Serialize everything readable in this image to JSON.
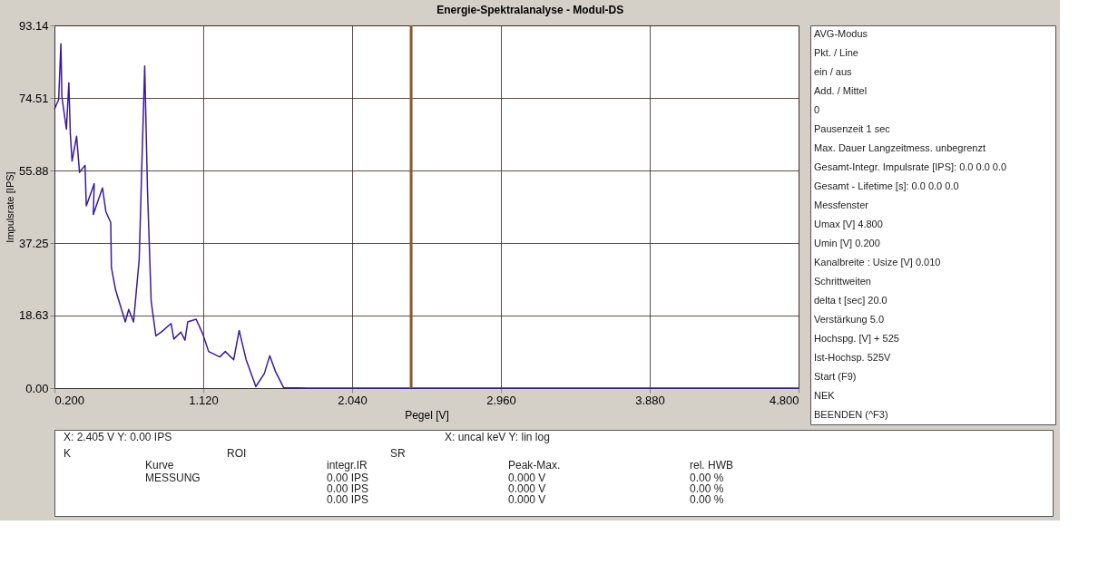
{
  "chart_data": {
    "type": "line",
    "title": "Energie-Spektralanalyse - Modul-DS",
    "xlabel": "Pegel [V]",
    "ylabel": "Impulsrate [IPS]",
    "x": [
      0.2,
      0.226,
      0.24,
      0.246,
      0.274,
      0.289,
      0.298,
      0.309,
      0.337,
      0.355,
      0.389,
      0.397,
      0.446,
      0.44,
      0.497,
      0.518,
      0.548,
      0.552,
      0.578,
      0.638,
      0.659,
      0.689,
      0.724,
      0.741,
      0.758,
      0.775,
      0.798,
      0.827,
      0.861,
      0.921,
      0.938,
      0.981,
      1.007,
      1.024,
      1.076,
      1.119,
      1.153,
      1.222,
      1.256,
      1.308,
      1.342,
      1.385,
      1.445,
      1.497,
      1.531,
      1.565,
      1.617,
      1.771,
      4.8
    ],
    "series": [
      {
        "color": "#3a1a9a",
        "values": [
          71.6,
          74.1,
          88.4,
          74.8,
          66.5,
          78.4,
          65.5,
          58.3,
          64.7,
          55.4,
          57.2,
          46.8,
          52.5,
          44.6,
          51.4,
          45.3,
          42.5,
          31.0,
          25.2,
          17.0,
          20.2,
          17.0,
          33.1,
          58.3,
          82.7,
          51.1,
          22.3,
          13.4,
          14.4,
          16.6,
          12.6,
          14.4,
          12.3,
          17.0,
          17.7,
          13.7,
          9.4,
          8.0,
          9.4,
          7.3,
          14.8,
          7.3,
          0.4,
          3.7,
          8.3,
          4.4,
          0.1,
          0,
          0
        ]
      }
    ],
    "xlim": [
      0.2,
      4.8
    ],
    "xticks": [
      {
        "value": 0.2,
        "label": "0.200"
      },
      {
        "value": 1.12,
        "label": "1.120"
      },
      {
        "value": 2.04,
        "label": "2.040"
      },
      {
        "value": 2.96,
        "label": "2.960"
      },
      {
        "value": 3.88,
        "label": "3.880"
      },
      {
        "value": 4.8,
        "label": "4.800"
      }
    ],
    "ylim": [
      0,
      93.14
    ],
    "yticks": [
      {
        "value": 0,
        "label": "0.00"
      },
      18.63,
      37.25,
      55.88,
      74.51,
      93.14
    ],
    "grid": true,
    "marker": "none",
    "line_style": "solid",
    "ref_lines": [
      {
        "axis": "x",
        "value": 2.405,
        "color": "#8b5a2b"
      }
    ],
    "annotations": [
      "AVG-Modus",
      "Pkt. / Line",
      "ein / aus",
      "Add. / Mittel",
      "0",
      "Pausenzeit  1  sec",
      "Max. Dauer Langzeitmess.  unbegrenzt",
      "Gesamt-Integr. Impulsrate [IPS]: 0.0  0.0  0.0",
      "Gesamt - Lifetime [s]: 0.0  0.0  0.0",
      "Messfenster",
      "Umax  [V]  4.800",
      "Umin  [V]  0.200",
      "Kanalbreite : Usize  [V]  0.010",
      "Schrittweiten",
      "delta  t [sec]  20.0",
      "Verstärkung  5.0",
      "Hochspg. [V]  +  525",
      "Ist-Hochsp.  525V",
      "Start (F9)",
      "NEK",
      "BEENDEN (^F3)",
      "X: 2.405 V   Y: 0.00 IPS",
      "X:  uncal  keV   Y:  lin  log",
      "K",
      "ROI",
      "SR",
      "Kurve",
      "integr.IR",
      "Peak-Max.",
      "rel. HWB",
      "MESSUNG",
      "0.00 IPS",
      "0.000 V",
      "0.00 %",
      "0.00 IPS",
      "0.000 V",
      "0.00 %",
      "0.00 IPS",
      "0.000 V",
      "0.00 %"
    ]
  }
}
